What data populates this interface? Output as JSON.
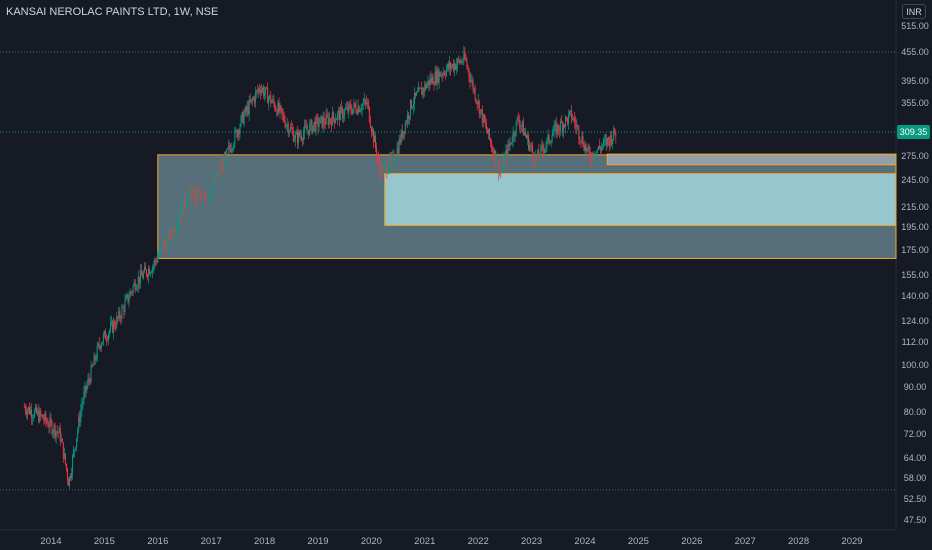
{
  "header": {
    "title": "KANSAI NEROLAC PAINTS LTD, 1W, NSE",
    "currency": "INR"
  },
  "price_axis": {
    "labels": [
      "515.00",
      "455.00",
      "395.00",
      "355.00",
      "275.00",
      "245.00",
      "215.00",
      "195.00",
      "175.00",
      "155.00",
      "140.00",
      "124.00",
      "112.00",
      "100.00",
      "90.00",
      "80.00",
      "72.00",
      "64.00",
      "58.00",
      "52.50",
      "47.50"
    ],
    "current_price": "309.35"
  },
  "time_axis": {
    "labels": [
      "2014",
      "2015",
      "2016",
      "2017",
      "2018",
      "2019",
      "2020",
      "2021",
      "2022",
      "2023",
      "2024",
      "2025",
      "2026",
      "2027",
      "2028",
      "2029"
    ]
  },
  "colors": {
    "background": "#161a25",
    "up": "#089981",
    "down": "#f23645",
    "zone_outline": "#f5a623",
    "zone_fill_large": "#7fa3b0",
    "zone_fill_inner": "#a8dfe6",
    "price_tag": "#089981"
  },
  "chart_data": {
    "type": "candlestick",
    "symbol": "KANSAI NEROLAC PAINTS LTD",
    "interval": "1W",
    "exchange": "NSE",
    "y_scale": "log",
    "ylim": [
      47.5,
      515
    ],
    "xlim": [
      "2013-08",
      "2029-12"
    ],
    "approx_close_path": [
      {
        "t": "2013-07",
        "p": 82
      },
      {
        "t": "2013-11",
        "p": 78
      },
      {
        "t": "2014-03",
        "p": 72
      },
      {
        "t": "2014-05",
        "p": 57
      },
      {
        "t": "2014-08",
        "p": 84
      },
      {
        "t": "2014-12",
        "p": 112
      },
      {
        "t": "2015-04",
        "p": 125
      },
      {
        "t": "2015-08",
        "p": 150
      },
      {
        "t": "2015-12",
        "p": 163
      },
      {
        "t": "2016-04",
        "p": 190
      },
      {
        "t": "2016-08",
        "p": 230
      },
      {
        "t": "2016-12",
        "p": 225
      },
      {
        "t": "2017-04",
        "p": 270
      },
      {
        "t": "2017-08",
        "p": 330
      },
      {
        "t": "2017-12",
        "p": 385
      },
      {
        "t": "2018-04",
        "p": 345
      },
      {
        "t": "2018-08",
        "p": 300
      },
      {
        "t": "2018-12",
        "p": 320
      },
      {
        "t": "2019-04",
        "p": 330
      },
      {
        "t": "2019-08",
        "p": 345
      },
      {
        "t": "2019-12",
        "p": 355
      },
      {
        "t": "2020-03",
        "p": 255
      },
      {
        "t": "2020-06",
        "p": 270
      },
      {
        "t": "2020-10",
        "p": 355
      },
      {
        "t": "2021-02",
        "p": 395
      },
      {
        "t": "2021-06",
        "p": 420
      },
      {
        "t": "2021-10",
        "p": 440
      },
      {
        "t": "2022-02",
        "p": 330
      },
      {
        "t": "2022-06",
        "p": 255
      },
      {
        "t": "2022-10",
        "p": 330
      },
      {
        "t": "2023-02",
        "p": 270
      },
      {
        "t": "2023-06",
        "p": 310
      },
      {
        "t": "2023-10",
        "p": 335
      },
      {
        "t": "2024-02",
        "p": 275
      },
      {
        "t": "2024-06",
        "p": 295
      },
      {
        "t": "2024-08",
        "p": 309.35
      }
    ],
    "zones": [
      {
        "from": "2016-01",
        "to": "2029-12",
        "low": 168,
        "high": 277
      },
      {
        "from": "2020-04",
        "to": "2029-12",
        "low": 197,
        "high": 253
      },
      {
        "from": "2024-06",
        "to": "2029-12",
        "low": 264,
        "high": 278
      }
    ],
    "reference_lines": [
      455,
      55
    ],
    "current_price": 309.35
  }
}
